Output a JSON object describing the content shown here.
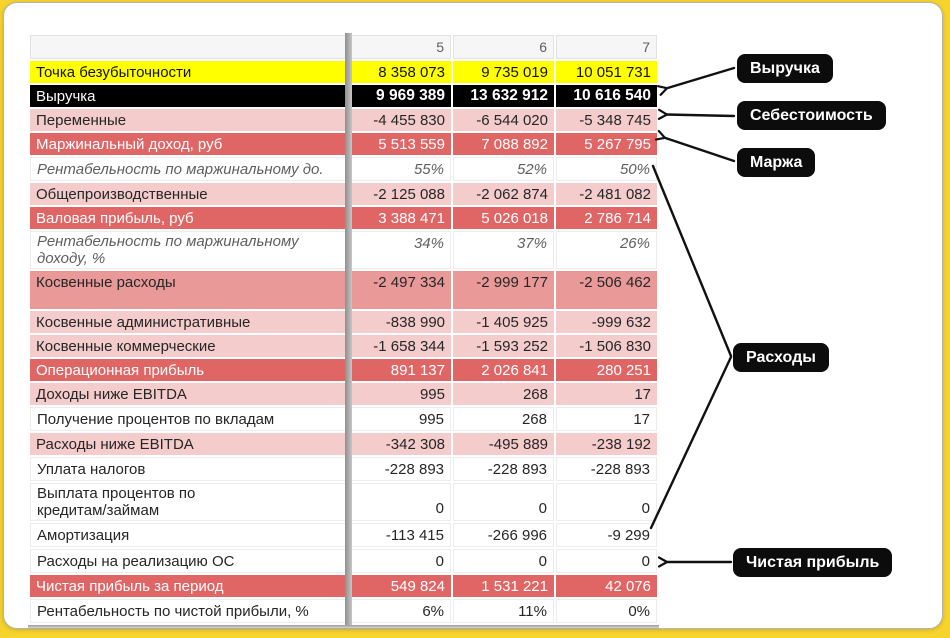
{
  "table": {
    "header": {
      "corner": "",
      "cols": [
        "5",
        "6",
        "7"
      ]
    },
    "rows": [
      {
        "label": "Точка безубыточности",
        "values": [
          "8 358 073",
          "9 735 019",
          "10 051 731"
        ],
        "style": "highlight-yellow"
      },
      {
        "label": "Выручка",
        "values": [
          "9 969 389",
          "13 632 912",
          "10 616 540"
        ],
        "style": "highlight-black"
      },
      {
        "label": "Переменные",
        "values": [
          "-4 455 830",
          "-6 544 020",
          "-5 348 745"
        ],
        "style": "shaded"
      },
      {
        "label": "Маржинальный доход, руб",
        "values": [
          "5 513 559",
          "7 088 892",
          "5 267 795"
        ],
        "style": "subtotal"
      },
      {
        "label": "Рентабельность по маржинальному до.",
        "values": [
          "55%",
          "52%",
          "50%"
        ],
        "style": "percent clip"
      },
      {
        "label": "Общепроизводственные",
        "values": [
          "-2 125 088",
          "-2 062 874",
          "-2 481 082"
        ],
        "style": "shaded"
      },
      {
        "label": "Валовая прибыль, руб",
        "values": [
          "3 388 471",
          "5 026 018",
          "2 786 714"
        ],
        "style": "subtotal"
      },
      {
        "label": "Рентабельность по маржинальному\nдоходу, %",
        "values": [
          "34%",
          "37%",
          "26%"
        ],
        "style": "percent vtop"
      },
      {
        "label": "Косвенные расходы",
        "values": [
          "-2 497 334",
          "-2 999 177",
          "-2 506 462"
        ],
        "style": "shaded-strong tall"
      },
      {
        "label": "Косвенные административные",
        "values": [
          "-838 990",
          "-1 405 925",
          "-999 632"
        ],
        "style": "shaded"
      },
      {
        "label": "Косвенные коммерческие",
        "values": [
          "-1 658 344",
          "-1 593 252",
          "-1 506 830"
        ],
        "style": "shaded"
      },
      {
        "label": "Операционная прибыль",
        "values": [
          "891 137",
          "2 026 841",
          "280 251"
        ],
        "style": "subtotal"
      },
      {
        "label": "Доходы ниже EBITDA",
        "values": [
          "995",
          "268",
          "17"
        ],
        "style": "shaded"
      },
      {
        "label": "Получение процентов по вкладам",
        "values": [
          "995",
          "268",
          "17"
        ],
        "style": "plain"
      },
      {
        "label": "Расходы ниже EBITDA",
        "values": [
          "-342 308",
          "-495 889",
          "-238 192"
        ],
        "style": "shaded"
      },
      {
        "label": "Уплата налогов",
        "values": [
          "-228 893",
          "-228 893",
          "-228 893"
        ],
        "style": "plain"
      },
      {
        "label": "Выплата процентов по\nкредитам/займам",
        "values": [
          "0",
          "0",
          "0"
        ],
        "style": "plain vbottom"
      },
      {
        "label": "Амортизация",
        "values": [
          "-113 415",
          "-266 996",
          "-9 299"
        ],
        "style": "plain"
      },
      {
        "label": "Расходы на реализацию ОС",
        "values": [
          "0",
          "0",
          "0"
        ],
        "style": "plain"
      },
      {
        "label": "Чистая прибыль за период",
        "values": [
          "549 824",
          "1 531 221",
          "42 076"
        ],
        "style": "subtotal"
      },
      {
        "label": "Рентабельность по чистой прибыли, %",
        "values": [
          "6%",
          "11%",
          "0%"
        ],
        "style": "plain"
      }
    ]
  },
  "callouts": [
    {
      "label": "Выручка"
    },
    {
      "label": "Себестоимость"
    },
    {
      "label": "Маржа"
    },
    {
      "label": "Расходы"
    },
    {
      "label": "Чистая прибыль"
    }
  ],
  "colors": {
    "page_background": "#F6D32D",
    "row_yellow": "#FFFF00",
    "row_black": "#000000",
    "row_red": "#E06666",
    "row_pink_strong": "#EA9999",
    "row_pink": "#F4CCCC",
    "callout_bg": "#0C0C0C",
    "arrow": "#111111"
  }
}
